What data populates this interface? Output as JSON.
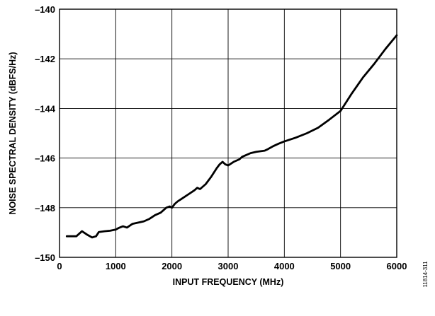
{
  "chart_data": {
    "type": "line",
    "title": "",
    "xlabel": "INPUT FREQUENCY (MHz)",
    "ylabel": "NOISE SPECTRAL DENSITY (dBFS/Hz)",
    "xlim": [
      0,
      6000
    ],
    "ylim": [
      -150,
      -140
    ],
    "xticks": [
      0,
      1000,
      2000,
      3000,
      4000,
      5000,
      6000
    ],
    "yticks": [
      -140,
      -142,
      -144,
      -146,
      -148,
      -150
    ],
    "xtick_labels": [
      "0",
      "1000",
      "2000",
      "3000",
      "4000",
      "5000",
      "6000"
    ],
    "ytick_labels": [
      "–140",
      "–142",
      "–144",
      "–146",
      "–148",
      "–150"
    ],
    "grid": true,
    "legend": "none",
    "figure_code": "11814-311",
    "series": [
      {
        "color": "#000000",
        "x": [
          130,
          300,
          400,
          500,
          580,
          650,
          700,
          800,
          900,
          1000,
          1050,
          1130,
          1200,
          1300,
          1400,
          1500,
          1600,
          1700,
          1800,
          1900,
          1960,
          2000,
          2050,
          2100,
          2200,
          2300,
          2400,
          2450,
          2500,
          2600,
          2700,
          2800,
          2850,
          2900,
          2950,
          3000,
          3100,
          3200,
          3250,
          3300,
          3400,
          3500,
          3650,
          3700,
          3800,
          3900,
          4000,
          4200,
          4400,
          4600,
          4800,
          5000,
          5100,
          5200,
          5400,
          5600,
          5800,
          6000
        ],
        "y": [
          -149.15,
          -149.15,
          -148.95,
          -149.1,
          -149.2,
          -149.15,
          -148.98,
          -148.95,
          -148.93,
          -148.88,
          -148.82,
          -148.75,
          -148.8,
          -148.65,
          -148.6,
          -148.55,
          -148.45,
          -148.3,
          -148.2,
          -148.0,
          -147.95,
          -148.0,
          -147.85,
          -147.75,
          -147.6,
          -147.45,
          -147.3,
          -147.2,
          -147.25,
          -147.05,
          -146.75,
          -146.4,
          -146.25,
          -146.15,
          -146.25,
          -146.3,
          -146.15,
          -146.05,
          -145.95,
          -145.9,
          -145.8,
          -145.75,
          -145.7,
          -145.65,
          -145.52,
          -145.42,
          -145.33,
          -145.18,
          -145.0,
          -144.78,
          -144.45,
          -144.1,
          -143.75,
          -143.4,
          -142.75,
          -142.2,
          -141.6,
          -141.05
        ]
      }
    ]
  }
}
